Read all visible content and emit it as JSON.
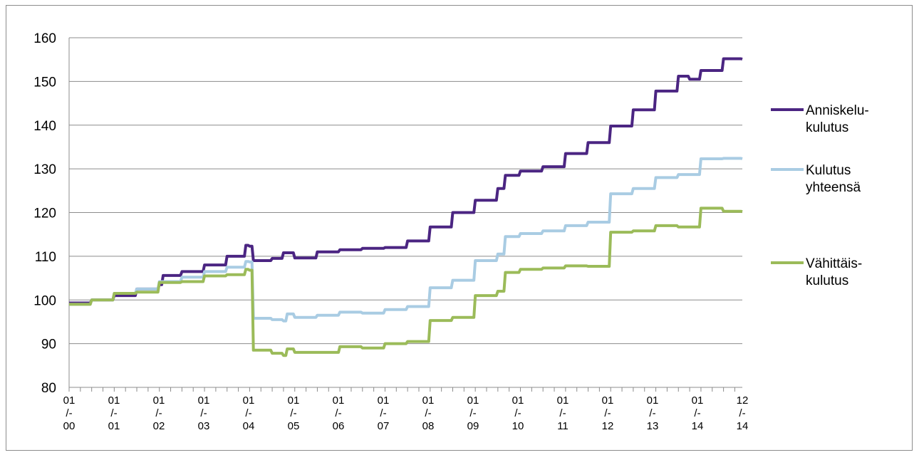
{
  "chart_data": {
    "type": "line",
    "title": "",
    "xlabel": "",
    "ylabel": "",
    "ylim": [
      80,
      160
    ],
    "yticks": [
      80,
      90,
      100,
      110,
      120,
      130,
      140,
      150,
      160
    ],
    "grid": "horizontal",
    "legend_position": "right",
    "x_start": "2000-01",
    "x_end": "2014-12",
    "x_tick_labels": [
      [
        "01",
        "/-",
        "00"
      ],
      [
        "01",
        "/-",
        "01"
      ],
      [
        "01",
        "/-",
        "02"
      ],
      [
        "01",
        "/-",
        "03"
      ],
      [
        "01",
        "/-",
        "04"
      ],
      [
        "01",
        "/-",
        "05"
      ],
      [
        "01",
        "/-",
        "06"
      ],
      [
        "01",
        "/-",
        "07"
      ],
      [
        "01",
        "/-",
        "08"
      ],
      [
        "01",
        "/-",
        "09"
      ],
      [
        "01",
        "/-",
        "10"
      ],
      [
        "01",
        "/-",
        "11"
      ],
      [
        "01",
        "/-",
        "12"
      ],
      [
        "01",
        "/-",
        "13"
      ],
      [
        "01",
        "/-",
        "14"
      ],
      [
        "12",
        "/-",
        "14"
      ]
    ],
    "series": [
      {
        "name_lines": [
          "Anniskelu-",
          "kulutus"
        ],
        "color": "#4B2582",
        "points": [
          [
            "2000-01",
            99.3
          ],
          [
            "2000-07",
            100.0
          ],
          [
            "2001-01",
            101.0
          ],
          [
            "2001-07",
            102.5
          ],
          [
            "2002-01",
            103.5
          ],
          [
            "2002-02",
            105.6
          ],
          [
            "2002-07",
            106.5
          ],
          [
            "2003-01",
            108.0
          ],
          [
            "2003-07",
            110.0
          ],
          [
            "2003-12",
            112.5
          ],
          [
            "2004-01",
            112.3
          ],
          [
            "2004-02",
            109.0
          ],
          [
            "2004-07",
            109.5
          ],
          [
            "2004-10",
            110.8
          ],
          [
            "2005-01",
            109.6
          ],
          [
            "2005-07",
            111.0
          ],
          [
            "2006-01",
            111.5
          ],
          [
            "2006-07",
            111.8
          ],
          [
            "2007-01",
            112.0
          ],
          [
            "2007-07",
            113.5
          ],
          [
            "2008-01",
            116.7
          ],
          [
            "2008-07",
            120.0
          ],
          [
            "2009-01",
            122.8
          ],
          [
            "2009-07",
            125.5
          ],
          [
            "2009-09",
            128.5
          ],
          [
            "2010-01",
            129.5
          ],
          [
            "2010-07",
            130.5
          ],
          [
            "2011-01",
            133.5
          ],
          [
            "2011-07",
            136.0
          ],
          [
            "2012-01",
            139.8
          ],
          [
            "2012-07",
            143.5
          ],
          [
            "2013-01",
            147.8
          ],
          [
            "2013-07",
            151.2
          ],
          [
            "2013-10",
            150.5
          ],
          [
            "2014-01",
            152.5
          ],
          [
            "2014-07",
            155.2
          ],
          [
            "2014-12",
            155.1
          ]
        ]
      },
      {
        "name_lines": [
          "Kulutus",
          "yhteensä"
        ],
        "color": "#A9CCE3",
        "points": [
          [
            "2000-01",
            99.0
          ],
          [
            "2000-07",
            100.0
          ],
          [
            "2001-01",
            101.5
          ],
          [
            "2001-07",
            102.5
          ],
          [
            "2002-01",
            104.2
          ],
          [
            "2002-07",
            105.2
          ],
          [
            "2003-01",
            106.5
          ],
          [
            "2003-07",
            107.5
          ],
          [
            "2003-12",
            108.8
          ],
          [
            "2004-01",
            108.7
          ],
          [
            "2004-02",
            95.8
          ],
          [
            "2004-07",
            95.5
          ],
          [
            "2004-10",
            95.2
          ],
          [
            "2004-11",
            96.8
          ],
          [
            "2005-01",
            96.0
          ],
          [
            "2005-07",
            96.5
          ],
          [
            "2006-01",
            97.2
          ],
          [
            "2006-07",
            97.0
          ],
          [
            "2007-01",
            97.8
          ],
          [
            "2007-07",
            98.5
          ],
          [
            "2008-01",
            102.8
          ],
          [
            "2008-07",
            104.5
          ],
          [
            "2009-01",
            109.0
          ],
          [
            "2009-07",
            110.5
          ],
          [
            "2009-09",
            114.5
          ],
          [
            "2010-01",
            115.2
          ],
          [
            "2010-07",
            115.8
          ],
          [
            "2011-01",
            117.0
          ],
          [
            "2011-07",
            117.8
          ],
          [
            "2012-01",
            124.3
          ],
          [
            "2012-07",
            125.5
          ],
          [
            "2013-01",
            128.0
          ],
          [
            "2013-07",
            128.7
          ],
          [
            "2014-01",
            132.3
          ],
          [
            "2014-07",
            132.4
          ],
          [
            "2014-12",
            132.3
          ]
        ]
      },
      {
        "name_lines": [
          "Vähittäis-",
          "kulutus"
        ],
        "color": "#9BBB59",
        "points": [
          [
            "2000-01",
            99.0
          ],
          [
            "2000-07",
            100.0
          ],
          [
            "2001-01",
            101.5
          ],
          [
            "2001-07",
            101.8
          ],
          [
            "2002-01",
            104.0
          ],
          [
            "2002-07",
            104.2
          ],
          [
            "2003-01",
            105.5
          ],
          [
            "2003-07",
            105.8
          ],
          [
            "2003-12",
            107.0
          ],
          [
            "2004-01",
            106.8
          ],
          [
            "2004-02",
            88.5
          ],
          [
            "2004-07",
            87.8
          ],
          [
            "2004-10",
            87.3
          ],
          [
            "2004-11",
            88.8
          ],
          [
            "2005-01",
            88.0
          ],
          [
            "2005-07",
            88.0
          ],
          [
            "2006-01",
            89.3
          ],
          [
            "2006-07",
            89.0
          ],
          [
            "2007-01",
            90.0
          ],
          [
            "2007-07",
            90.5
          ],
          [
            "2008-01",
            95.3
          ],
          [
            "2008-07",
            96.0
          ],
          [
            "2009-01",
            101.0
          ],
          [
            "2009-07",
            102.0
          ],
          [
            "2009-09",
            106.3
          ],
          [
            "2010-01",
            107.0
          ],
          [
            "2010-07",
            107.3
          ],
          [
            "2011-01",
            107.8
          ],
          [
            "2011-07",
            107.7
          ],
          [
            "2012-01",
            115.5
          ],
          [
            "2012-07",
            115.8
          ],
          [
            "2013-01",
            117.0
          ],
          [
            "2013-07",
            116.7
          ],
          [
            "2014-01",
            121.0
          ],
          [
            "2014-07",
            120.3
          ],
          [
            "2014-12",
            120.2
          ]
        ]
      }
    ]
  }
}
